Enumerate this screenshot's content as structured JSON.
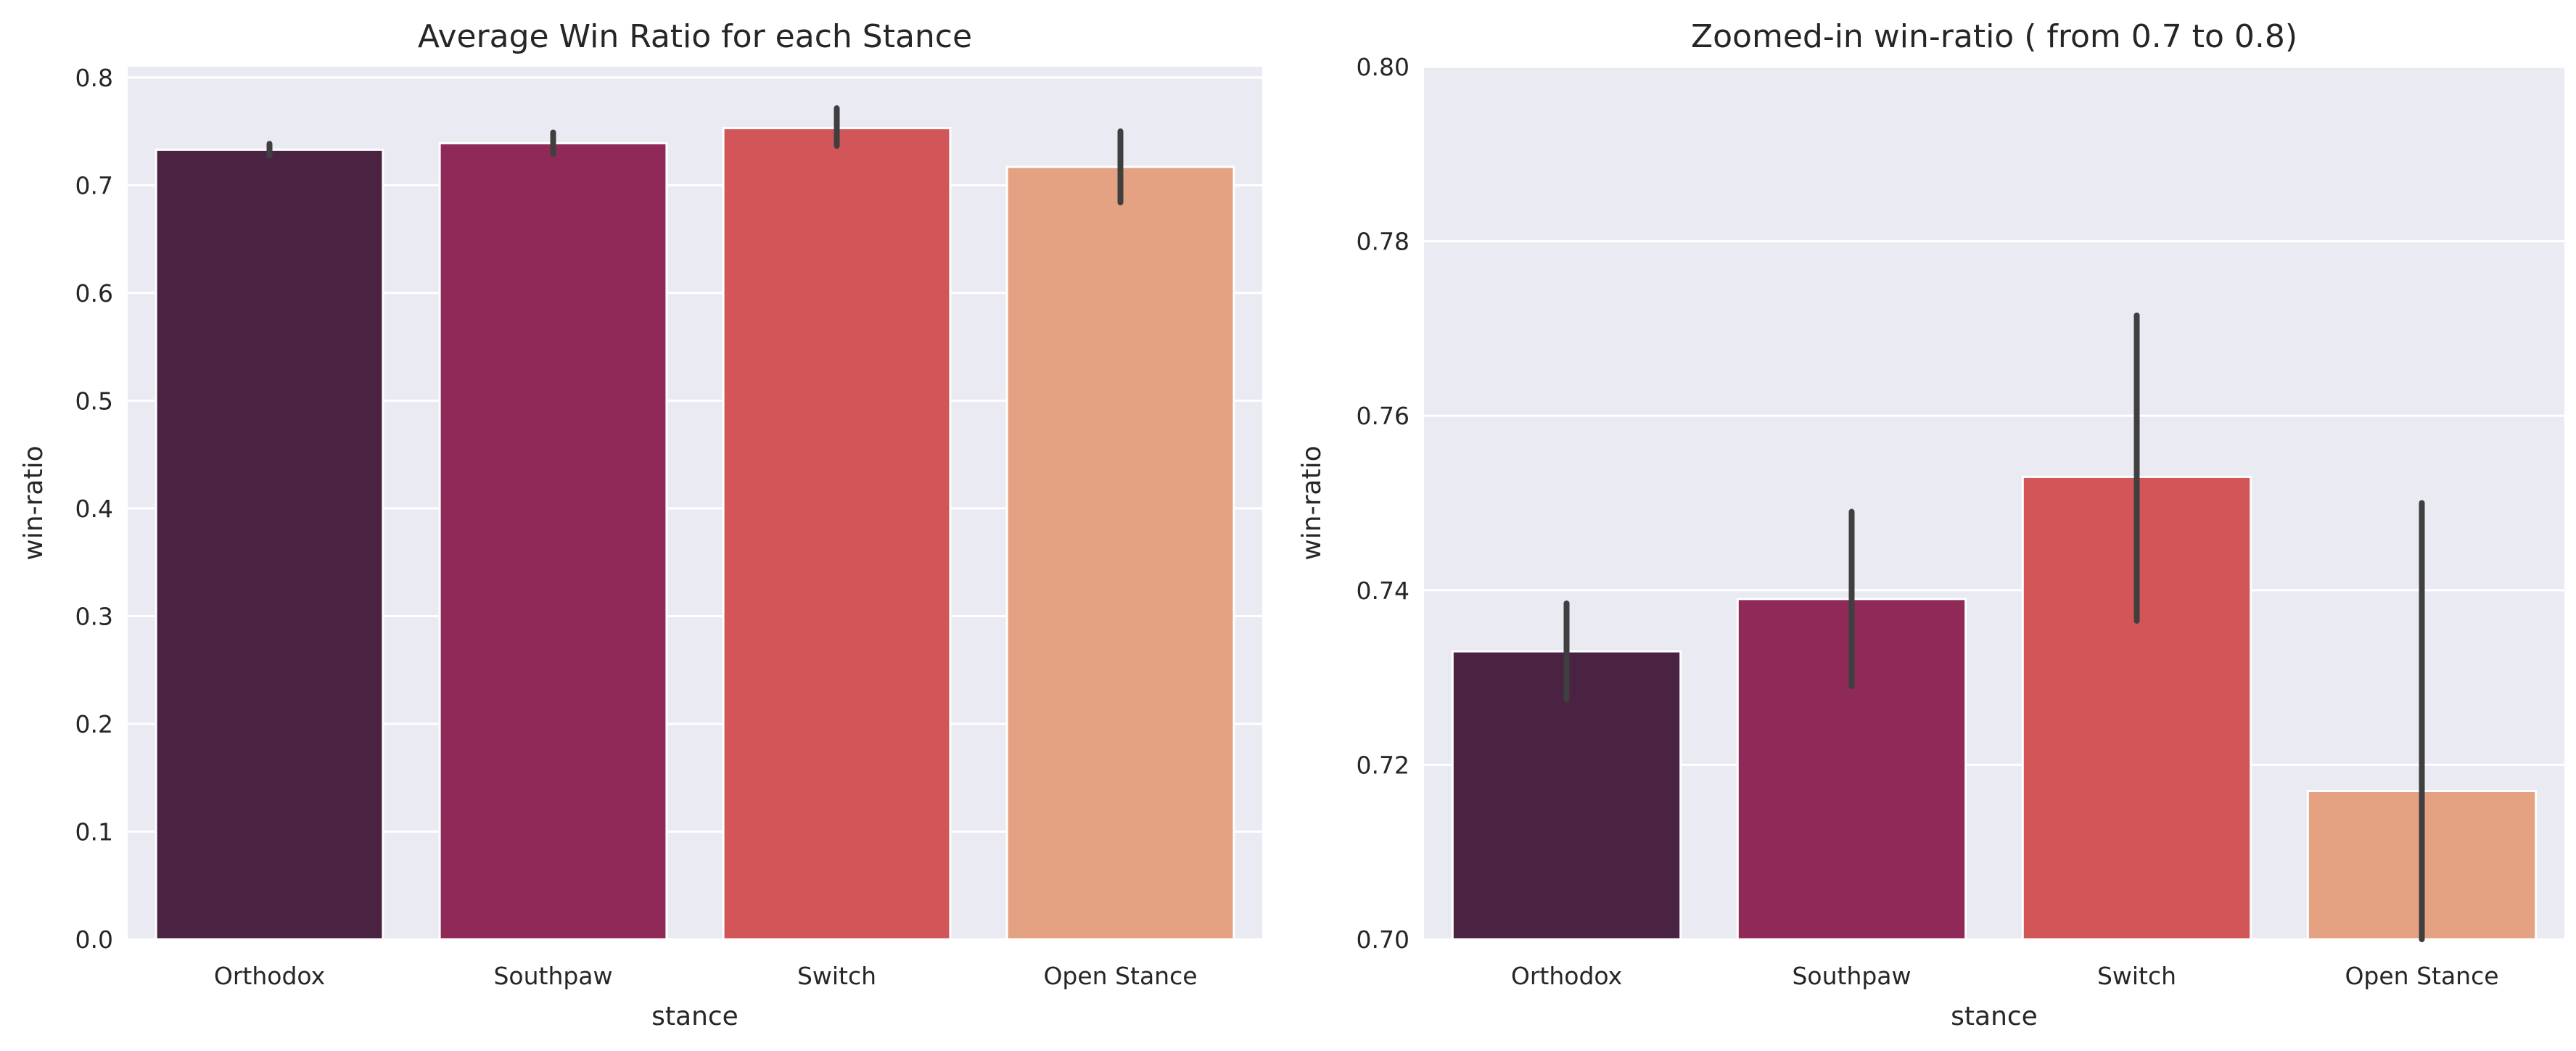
{
  "chart_data": [
    {
      "type": "bar",
      "title": "Average Win Ratio for each Stance",
      "xlabel": "stance",
      "ylabel": "win-ratio",
      "categories": [
        "Orthodox",
        "Southpaw",
        "Switch",
        "Open Stance"
      ],
      "values": [
        0.733,
        0.739,
        0.753,
        0.717
      ],
      "error_low": [
        0.7275,
        0.729,
        0.7365,
        0.684
      ],
      "error_high": [
        0.7385,
        0.749,
        0.7715,
        0.75
      ],
      "ylim": [
        0.0,
        0.81
      ],
      "yticks": [
        0.0,
        0.1,
        0.2,
        0.3,
        0.4,
        0.5,
        0.6,
        0.7,
        0.8
      ],
      "ytick_labels": [
        "0.0",
        "0.1",
        "0.2",
        "0.3",
        "0.4",
        "0.5",
        "0.6",
        "0.7",
        "0.8"
      ],
      "grid": true,
      "bar_colors": [
        "#4a2342",
        "#8f2a58",
        "#d25557",
        "#e4a282"
      ]
    },
    {
      "type": "bar",
      "title": "Zoomed-in win-ratio ( from 0.7 to 0.8)",
      "xlabel": "stance",
      "ylabel": "win-ratio",
      "categories": [
        "Orthodox",
        "Southpaw",
        "Switch",
        "Open Stance"
      ],
      "values": [
        0.733,
        0.739,
        0.753,
        0.717
      ],
      "error_low": [
        0.7275,
        0.729,
        0.7365,
        0.684
      ],
      "error_high": [
        0.7385,
        0.749,
        0.7715,
        0.75
      ],
      "ylim": [
        0.7,
        0.8
      ],
      "yticks": [
        0.7,
        0.72,
        0.74,
        0.76,
        0.78,
        0.8
      ],
      "ytick_labels": [
        "0.70",
        "0.72",
        "0.74",
        "0.76",
        "0.78",
        "0.80"
      ],
      "grid": true,
      "bar_colors": [
        "#4a2342",
        "#8f2a58",
        "#d25557",
        "#e4a282"
      ]
    }
  ]
}
